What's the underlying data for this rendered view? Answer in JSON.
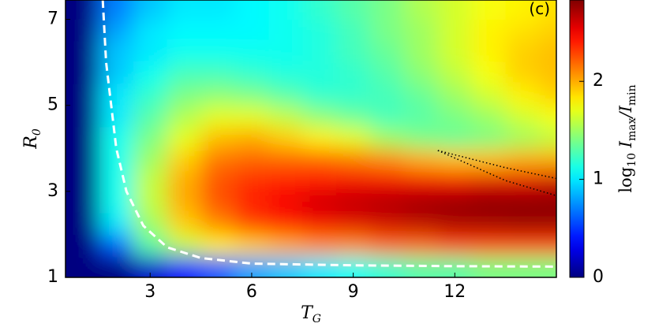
{
  "chart_data": {
    "type": "heatmap",
    "annotation": "(c)",
    "xlabel": [
      "T",
      "G"
    ],
    "ylabel": [
      "R",
      "0"
    ],
    "colorbar_label": [
      "log",
      "10",
      " I",
      "max",
      "/I",
      "min"
    ],
    "colormap": "jet",
    "xlim": [
      0.5,
      15
    ],
    "ylim": [
      1,
      7.45
    ],
    "clim": [
      0,
      2.83
    ],
    "xticks": [
      3,
      6,
      9,
      12
    ],
    "yticks": [
      1,
      3,
      5,
      7
    ],
    "cticks": [
      0,
      1,
      2
    ],
    "x": [
      1,
      2,
      3,
      4,
      5,
      6,
      7,
      8,
      9,
      10,
      11,
      12,
      13,
      14,
      15
    ],
    "y": [
      1.25,
      1.75,
      2.25,
      2.75,
      3.25,
      3.75,
      4.25,
      4.75,
      5.25,
      5.75,
      6.25,
      6.75,
      7.25
    ],
    "z": [
      [
        0,
        0,
        0.2,
        0.4,
        0.6,
        0.8,
        0.9,
        1.0,
        1.1,
        1.2,
        1.3,
        1.3,
        1.4,
        1.4,
        1.4
      ],
      [
        0,
        0.6,
        1.3,
        1.6,
        1.8,
        1.9,
        2.0,
        2.1,
        2.1,
        2.2,
        2.2,
        2.3,
        2.3,
        2.3,
        2.3
      ],
      [
        0,
        1.0,
        1.5,
        1.9,
        2.1,
        2.3,
        2.4,
        2.5,
        2.55,
        2.6,
        2.65,
        2.7,
        2.72,
        2.75,
        2.75
      ],
      [
        0,
        1.1,
        1.6,
        2.0,
        2.25,
        2.4,
        2.5,
        2.6,
        2.65,
        2.7,
        2.75,
        2.78,
        2.8,
        2.8,
        2.8
      ],
      [
        0,
        1.1,
        1.6,
        2.0,
        2.25,
        2.35,
        2.4,
        2.45,
        2.5,
        2.5,
        2.5,
        2.5,
        2.55,
        2.55,
        2.6
      ],
      [
        0,
        1.1,
        1.5,
        1.9,
        2.15,
        2.2,
        2.2,
        2.2,
        2.15,
        2.1,
        2.0,
        1.95,
        1.95,
        2.0,
        2.0
      ],
      [
        0,
        1.1,
        1.4,
        1.7,
        1.95,
        2.0,
        1.9,
        1.8,
        1.7,
        1.5,
        1.4,
        1.35,
        1.4,
        1.5,
        1.6
      ],
      [
        0,
        1.0,
        1.3,
        1.55,
        1.7,
        1.7,
        1.6,
        1.45,
        1.35,
        1.25,
        1.3,
        1.4,
        1.5,
        1.65,
        1.75
      ],
      [
        0,
        1.0,
        1.2,
        1.4,
        1.45,
        1.4,
        1.3,
        1.2,
        1.2,
        1.25,
        1.35,
        1.5,
        1.65,
        1.8,
        1.9
      ],
      [
        0,
        0.9,
        1.1,
        1.25,
        1.25,
        1.2,
        1.15,
        1.15,
        1.2,
        1.3,
        1.45,
        1.6,
        1.75,
        1.9,
        1.95
      ],
      [
        0,
        0.9,
        1.0,
        1.1,
        1.1,
        1.1,
        1.1,
        1.15,
        1.25,
        1.35,
        1.5,
        1.65,
        1.8,
        1.9,
        1.95
      ],
      [
        0,
        0.8,
        1.0,
        1.05,
        1.05,
        1.05,
        1.1,
        1.15,
        1.25,
        1.4,
        1.5,
        1.65,
        1.8,
        1.85,
        1.9
      ],
      [
        0,
        0.7,
        0.9,
        1.0,
        1.0,
        1.05,
        1.1,
        1.2,
        1.3,
        1.4,
        1.55,
        1.65,
        1.75,
        1.8,
        1.85
      ]
    ],
    "lines": [
      {
        "style": "dashed",
        "color": "#ffffff",
        "x": [
          1.6,
          1.7,
          1.85,
          2.0,
          2.3,
          2.8,
          3.5,
          4.5,
          6,
          9,
          12,
          15
        ],
        "y": [
          7.45,
          6,
          5,
          4,
          3,
          2.2,
          1.7,
          1.45,
          1.32,
          1.28,
          1.26,
          1.25
        ]
      },
      {
        "style": "dotted",
        "color": "#000000",
        "x": [
          11.5,
          12.5,
          13.5,
          15
        ],
        "y": [
          3.95,
          3.75,
          3.55,
          3.3
        ]
      },
      {
        "style": "dotted",
        "color": "#000000",
        "x": [
          11.5,
          12.5,
          13.5,
          15
        ],
        "y": [
          3.95,
          3.6,
          3.25,
          2.9
        ]
      }
    ]
  }
}
